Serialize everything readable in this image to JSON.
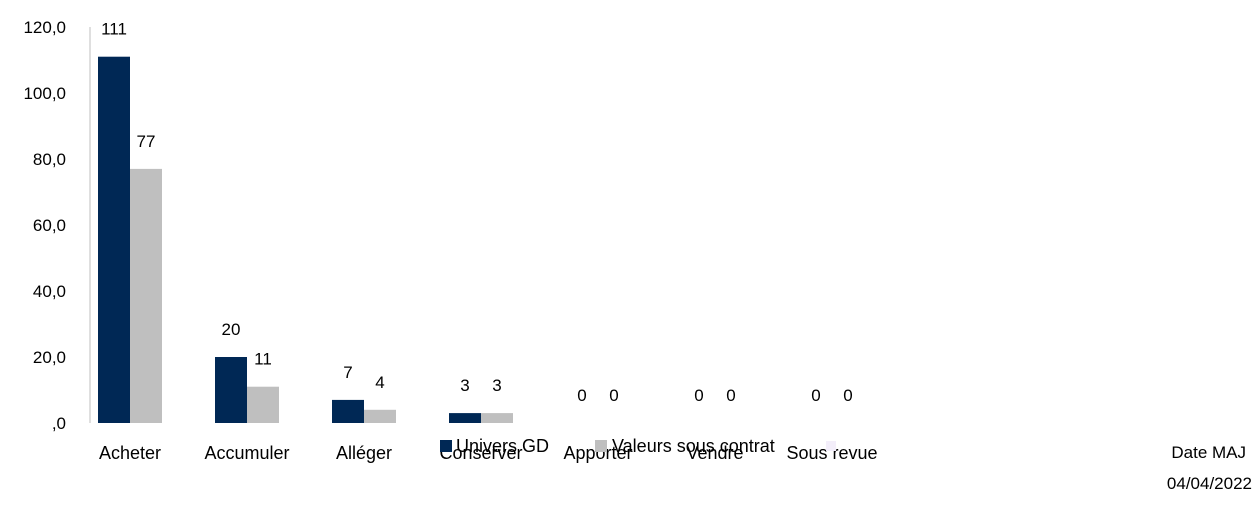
{
  "chart_data": {
    "type": "bar",
    "categories": [
      "Acheter",
      "Accumuler",
      "Alléger",
      "Conserver",
      "Apporter",
      "Vendre",
      "Sous revue"
    ],
    "series": [
      {
        "name": "Univers GD",
        "values": [
          111,
          20,
          7,
          3,
          0,
          0,
          0
        ],
        "color": "#002855"
      },
      {
        "name": "Valeurs sous contrat",
        "values": [
          77,
          11,
          4,
          3,
          0,
          0,
          0
        ],
        "color": "#bfbfbf"
      }
    ],
    "yticks": [
      ",0",
      "20,0",
      "40,0",
      "60,0",
      "80,0",
      "100,0",
      "120,0"
    ],
    "ylim": [
      0,
      120
    ],
    "grid": false,
    "legend": "bottom",
    "note": {
      "line1": "Date MAJ",
      "line2": "04/04/2022"
    }
  }
}
